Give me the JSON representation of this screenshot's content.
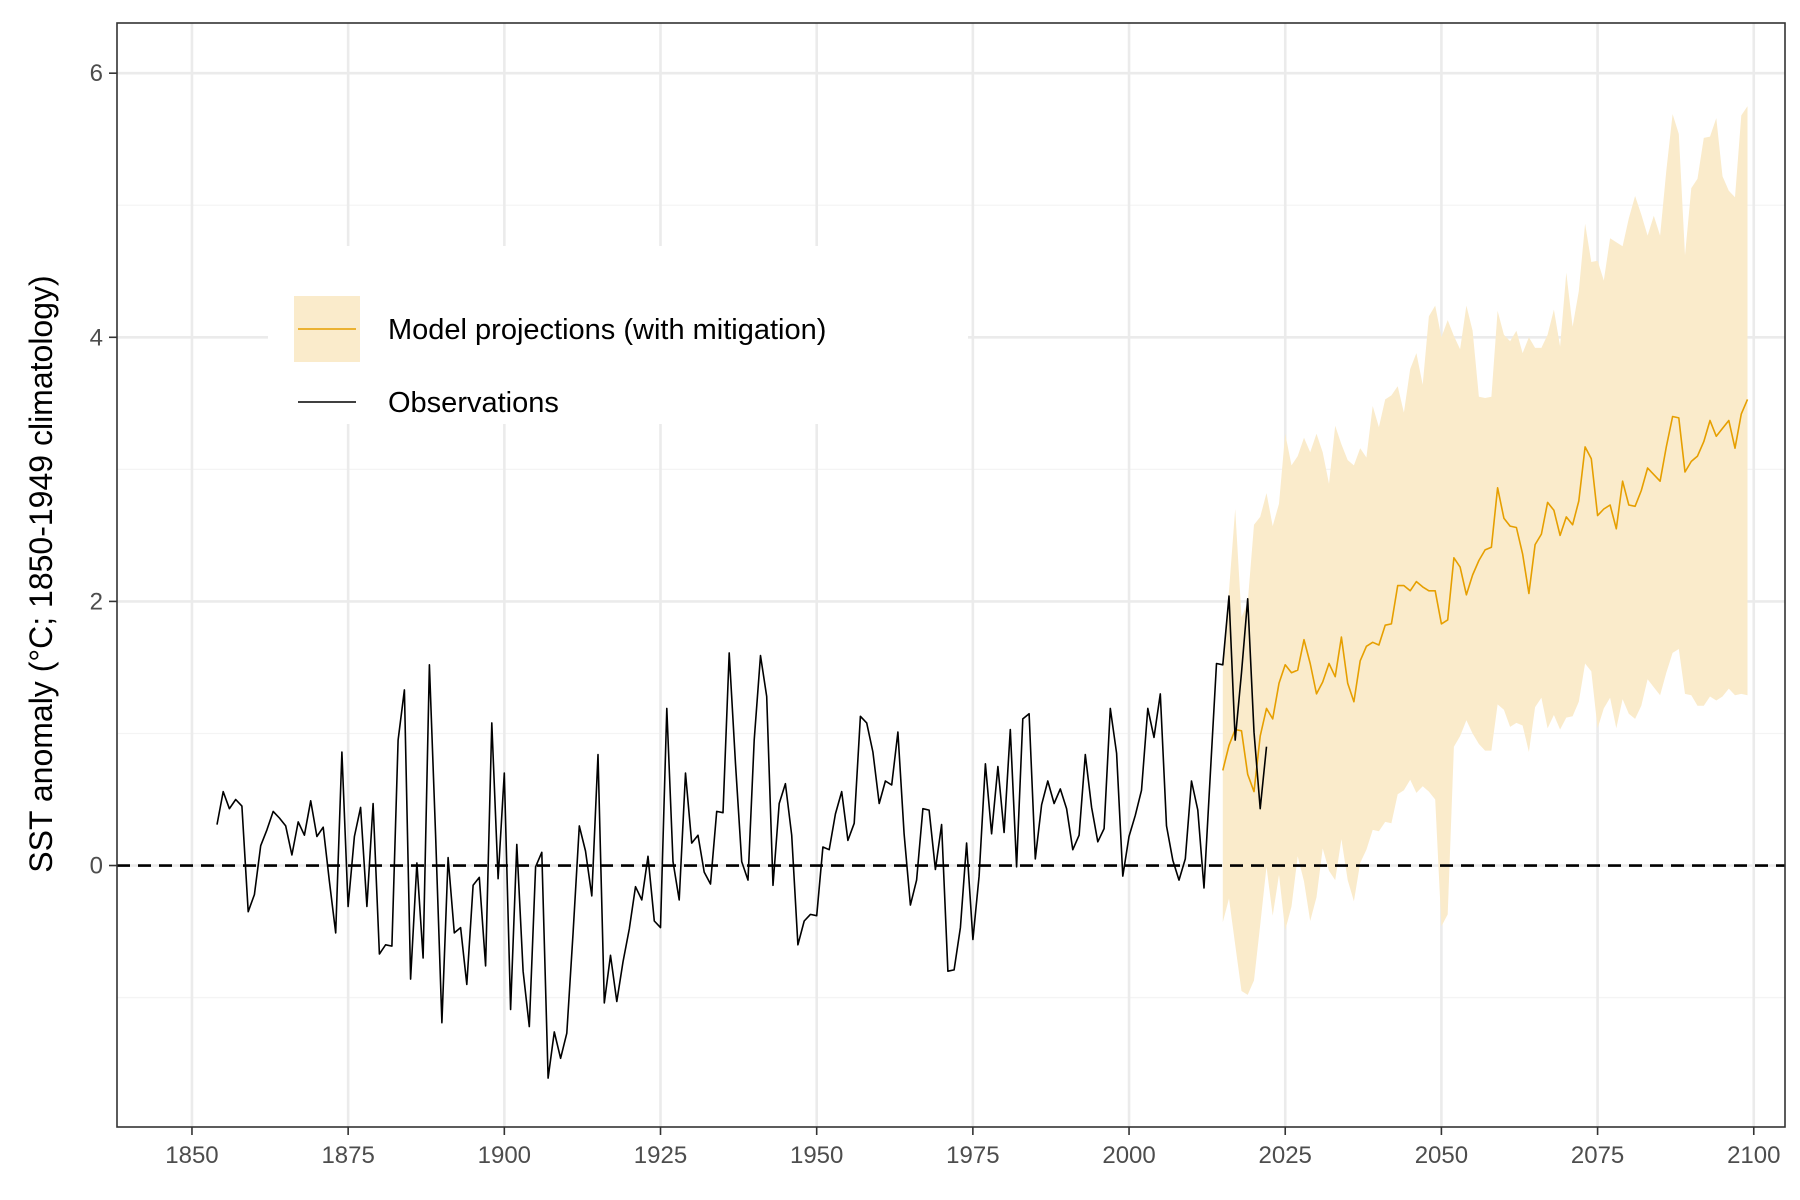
{
  "chart_data": {
    "type": "line",
    "title": "",
    "xlabel": "",
    "ylabel": "SST anomaly (°C; 1850-1949 climatology)",
    "xlim": [
      1838,
      2105
    ],
    "ylim": [
      -1.98,
      6.38
    ],
    "x_ticks": [
      1850,
      1875,
      1900,
      1925,
      1950,
      1975,
      2000,
      2025,
      2050,
      2075,
      2100
    ],
    "y_ticks": [
      0,
      2,
      4,
      6
    ],
    "grid": true,
    "legend_position": "top-left",
    "reference_line": {
      "y": 0,
      "style": "dashed"
    },
    "colors": {
      "observations": "#000000",
      "projection_line": "#E69F00",
      "projection_band": "#FAEBCB",
      "grid_major": "#EBEBEB",
      "grid_minor": "#F4F4F4",
      "panel_border": "#333333"
    },
    "series": [
      {
        "name": "Observations",
        "x_start": 1854,
        "values": [
          0.31,
          0.56,
          0.43,
          0.5,
          0.45,
          -0.35,
          -0.22,
          0.15,
          0.27,
          0.41,
          0.36,
          0.3,
          0.08,
          0.33,
          0.23,
          0.49,
          0.22,
          0.29,
          -0.12,
          -0.51,
          0.86,
          -0.31,
          0.22,
          0.44,
          -0.31,
          0.47,
          -0.67,
          -0.6,
          -0.61,
          0.95,
          1.33,
          -0.86,
          0.02,
          -0.7,
          1.52,
          0.23,
          -1.19,
          0.06,
          -0.51,
          -0.47,
          -0.9,
          -0.15,
          -0.09,
          -0.76,
          1.08,
          -0.1,
          0.7,
          -1.09,
          0.16,
          -0.8,
          -1.22,
          -0.01,
          0.1,
          -1.61,
          -1.26,
          -1.46,
          -1.27,
          -0.52,
          0.3,
          0.11,
          -0.23,
          0.84,
          -1.04,
          -0.68,
          -1.03,
          -0.73,
          -0.48,
          -0.16,
          -0.26,
          0.07,
          -0.42,
          -0.47,
          1.19,
          0.03,
          -0.26,
          0.7,
          0.17,
          0.23,
          -0.05,
          -0.14,
          0.41,
          0.4,
          1.61,
          0.77,
          0.03,
          -0.11,
          0.95,
          1.59,
          1.28,
          -0.15,
          0.47,
          0.62,
          0.23,
          -0.6,
          -0.42,
          -0.37,
          -0.38,
          0.14,
          0.12,
          0.39,
          0.56,
          0.19,
          0.32,
          1.13,
          1.08,
          0.86,
          0.47,
          0.64,
          0.61,
          1.01,
          0.24,
          -0.3,
          -0.11,
          0.43,
          0.42,
          -0.03,
          0.31,
          -0.8,
          -0.79,
          -0.47,
          0.17,
          -0.56,
          -0.08,
          0.77,
          0.24,
          0.75,
          0.25,
          1.03,
          -0.01,
          1.11,
          1.15,
          0.05,
          0.46,
          0.64,
          0.47,
          0.58,
          0.43,
          0.12,
          0.23,
          0.84,
          0.44,
          0.18,
          0.28,
          1.19,
          0.85,
          -0.08,
          0.22,
          0.38,
          0.57,
          1.19,
          0.97,
          1.3,
          0.3,
          0.04,
          -0.11,
          0.05,
          0.64,
          0.42,
          -0.17,
          0.69,
          1.53,
          1.52,
          2.04,
          0.95,
          1.46,
          2.02,
          1.01,
          0.43,
          0.9
        ]
      },
      {
        "name": "Model projections (with mitigation)",
        "x_start": 2015,
        "values": [
          0.72,
          0.91,
          1.03,
          1.02,
          0.69,
          0.56,
          0.98,
          1.19,
          1.11,
          1.38,
          1.52,
          1.46,
          1.48,
          1.71,
          1.53,
          1.3,
          1.39,
          1.53,
          1.43,
          1.73,
          1.38,
          1.24,
          1.55,
          1.66,
          1.69,
          1.67,
          1.82,
          1.83,
          2.12,
          2.12,
          2.08,
          2.15,
          2.11,
          2.08,
          2.08,
          1.83,
          1.86,
          2.33,
          2.26,
          2.05,
          2.2,
          2.31,
          2.39,
          2.41,
          2.86,
          2.63,
          2.57,
          2.56,
          2.36,
          2.06,
          2.43,
          2.51,
          2.75,
          2.69,
          2.5,
          2.64,
          2.58,
          2.76,
          3.17,
          3.08,
          2.65,
          2.7,
          2.73,
          2.55,
          2.91,
          2.73,
          2.72,
          2.84,
          3.01,
          2.96,
          2.91,
          3.17,
          3.4,
          3.39,
          2.98,
          3.06,
          3.1,
          3.21,
          3.37,
          3.25,
          3.31,
          3.37,
          3.16,
          3.42,
          3.53
        ]
      }
    ],
    "projection_band": {
      "x_start": 2015,
      "lower": [
        -0.43,
        -0.25,
        -0.6,
        -0.95,
        -0.98,
        -0.87,
        -0.45,
        -0.01,
        -0.38,
        -0.07,
        -0.49,
        -0.31,
        0.07,
        -0.12,
        -0.42,
        -0.24,
        0.13,
        -0.04,
        -0.11,
        0.2,
        -0.11,
        -0.27,
        0.02,
        0.12,
        0.27,
        0.26,
        0.33,
        0.32,
        0.54,
        0.57,
        0.65,
        0.55,
        0.6,
        0.56,
        0.5,
        -0.46,
        -0.37,
        0.9,
        0.98,
        1.1,
        1.0,
        0.92,
        0.87,
        0.87,
        1.22,
        1.18,
        1.05,
        1.08,
        1.06,
        0.86,
        1.2,
        1.27,
        1.04,
        1.14,
        1.03,
        1.12,
        1.13,
        1.24,
        1.53,
        1.47,
        1.04,
        1.19,
        1.27,
        1.04,
        1.26,
        1.15,
        1.11,
        1.21,
        1.41,
        1.35,
        1.29,
        1.46,
        1.61,
        1.64,
        1.3,
        1.29,
        1.21,
        1.21,
        1.28,
        1.25,
        1.28,
        1.34,
        1.29,
        1.3,
        1.29
      ],
      "upper": [
        1.57,
        2.08,
        2.7,
        1.88,
        1.99,
        2.58,
        2.64,
        2.82,
        2.57,
        2.74,
        3.27,
        3.03,
        3.1,
        3.24,
        3.13,
        3.27,
        3.13,
        2.89,
        3.33,
        3.19,
        3.07,
        3.03,
        3.16,
        3.09,
        3.48,
        3.32,
        3.53,
        3.56,
        3.63,
        3.43,
        3.76,
        3.88,
        3.64,
        4.16,
        4.24,
        4.0,
        4.13,
        4.01,
        3.91,
        4.24,
        4.05,
        3.55,
        3.54,
        3.55,
        4.2,
        4.02,
        3.97,
        4.05,
        3.88,
        4.0,
        3.92,
        3.92,
        4.02,
        4.21,
        3.93,
        4.49,
        4.08,
        4.35,
        4.86,
        4.57,
        4.58,
        4.43,
        4.75,
        4.72,
        4.69,
        4.9,
        5.07,
        4.93,
        4.77,
        4.92,
        4.77,
        5.26,
        5.69,
        5.54,
        4.62,
        5.13,
        5.2,
        5.51,
        5.52,
        5.66,
        5.22,
        5.11,
        5.06,
        5.68,
        5.75
      ]
    }
  }
}
